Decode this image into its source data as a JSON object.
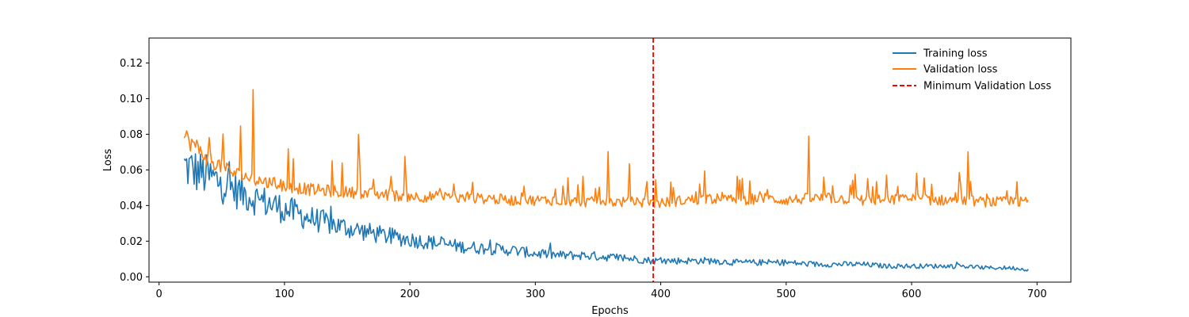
{
  "chart_data": {
    "type": "line",
    "title": "",
    "xlabel": "Epochs",
    "ylabel": "Loss",
    "xlim": [
      -8,
      727
    ],
    "ylim": [
      -0.003,
      0.134
    ],
    "xticks": [
      0,
      100,
      200,
      300,
      400,
      500,
      600,
      700
    ],
    "yticks": [
      0.0,
      0.02,
      0.04,
      0.06,
      0.08,
      0.1,
      0.12
    ],
    "ytick_labels": [
      "0.00",
      "0.02",
      "0.04",
      "0.06",
      "0.08",
      "0.10",
      "0.12"
    ],
    "grid": false,
    "legend_position": "top-right",
    "series": [
      {
        "name": "Training loss",
        "color": "#1f77b4",
        "x": [
          20,
          40,
          60,
          80,
          100,
          120,
          140,
          160,
          180,
          200,
          220,
          240,
          260,
          280,
          300,
          320,
          340,
          360,
          380,
          394,
          420,
          440,
          460,
          480,
          500,
          520,
          540,
          560,
          580,
          600,
          620,
          640,
          660,
          680,
          693
        ],
        "y": [
          0.062,
          0.056,
          0.049,
          0.043,
          0.038,
          0.033,
          0.029,
          0.026,
          0.023,
          0.021,
          0.019,
          0.017,
          0.016,
          0.015,
          0.013,
          0.012,
          0.012,
          0.011,
          0.01,
          0.009,
          0.009,
          0.009,
          0.008,
          0.008,
          0.008,
          0.007,
          0.007,
          0.007,
          0.006,
          0.006,
          0.006,
          0.006,
          0.005,
          0.005,
          0.004
        ]
      },
      {
        "name": "Validation loss",
        "color": "#ff7f0e",
        "x": [
          20,
          40,
          60,
          80,
          100,
          120,
          140,
          160,
          180,
          200,
          220,
          240,
          260,
          280,
          300,
          320,
          340,
          360,
          380,
          394,
          420,
          440,
          460,
          480,
          500,
          520,
          540,
          560,
          580,
          600,
          620,
          640,
          660,
          680,
          693
        ],
        "y": [
          0.079,
          0.066,
          0.058,
          0.054,
          0.051,
          0.049,
          0.048,
          0.047,
          0.046,
          0.045,
          0.045,
          0.044,
          0.044,
          0.043,
          0.043,
          0.043,
          0.042,
          0.042,
          0.042,
          0.041,
          0.043,
          0.044,
          0.043,
          0.044,
          0.043,
          0.044,
          0.044,
          0.043,
          0.043,
          0.044,
          0.043,
          0.043,
          0.042,
          0.042,
          0.042
        ]
      }
    ],
    "vline": {
      "name": "Minimum Validation Loss",
      "x": 394,
      "color": "#ff0000",
      "style": "dashed"
    }
  }
}
